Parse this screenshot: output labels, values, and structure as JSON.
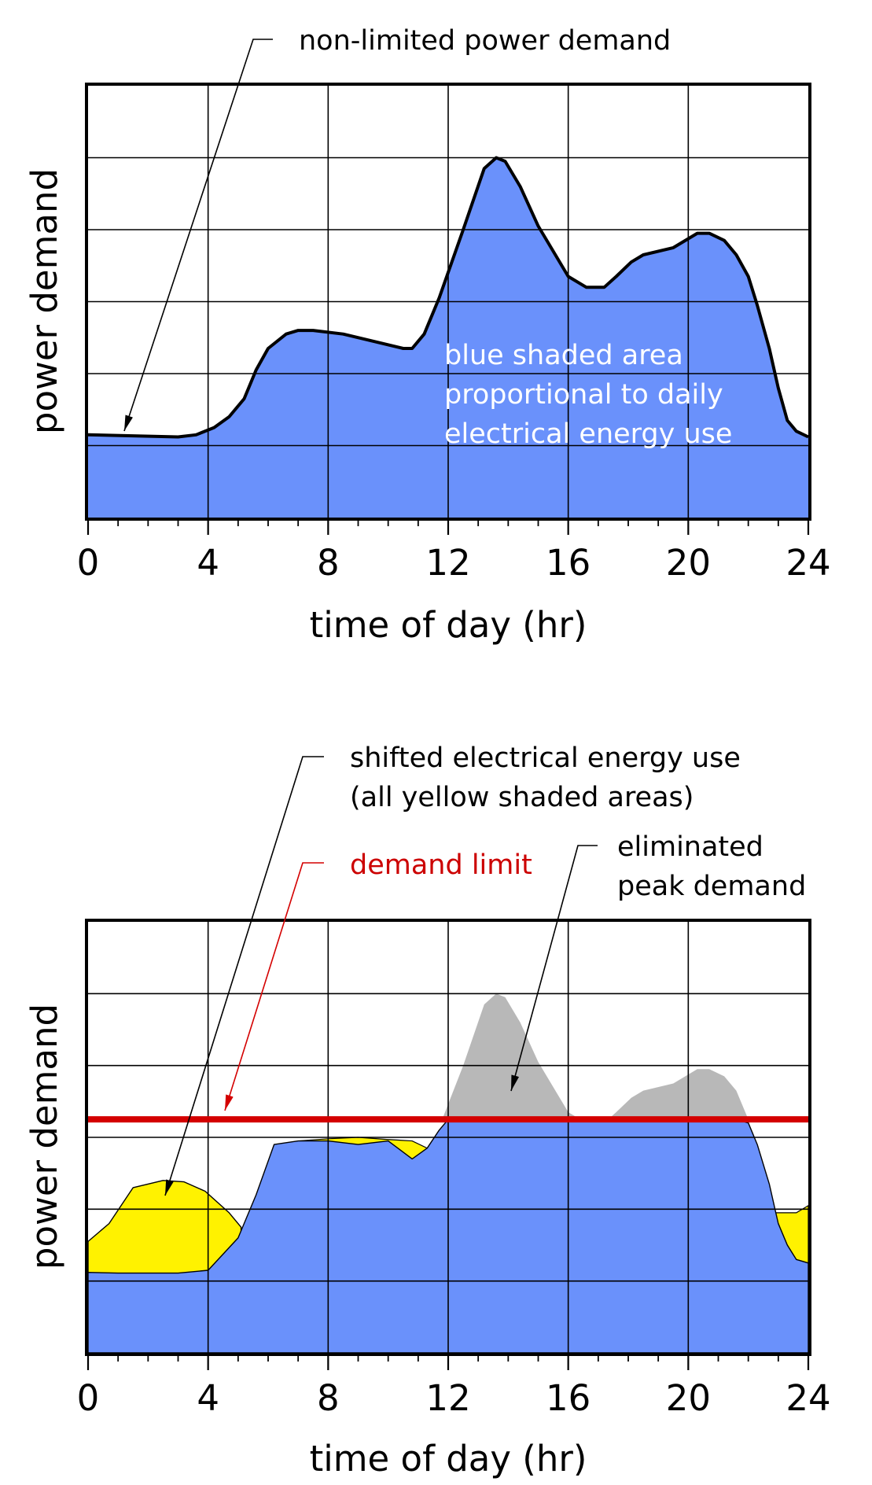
{
  "colors": {
    "blue_fill": "#6a91fb",
    "yellow_fill": "#fff200",
    "gray_fill": "#b8b8b8",
    "limit_line": "#d40000",
    "grid": "#000000"
  },
  "chart_data": [
    {
      "type": "area",
      "xlabel": "time of day (hr)",
      "ylabel": "power demand",
      "xlim": [
        0,
        24
      ],
      "ylim": [
        0,
        6
      ],
      "xticks": [
        0,
        4,
        8,
        12,
        16,
        20,
        24
      ],
      "xticks_minor_step": 1,
      "y_gridlines": [
        1,
        2,
        3,
        4,
        5
      ],
      "grid": true,
      "series": [
        {
          "x": [
            0,
            3,
            3.6,
            4.2,
            4.7,
            5.2,
            5.6,
            6.0,
            6.6,
            7.0,
            7.5,
            8.5,
            9.5,
            10.5,
            10.8,
            11.2,
            11.7,
            12.5,
            13.2,
            13.6,
            13.9,
            14.4,
            15.0,
            16.0,
            16.6,
            17.2,
            17.6,
            18.1,
            18.5,
            19.5,
            20.3,
            20.7,
            21.2,
            21.6,
            22.0,
            22.3,
            22.7,
            23.0,
            23.3,
            23.6,
            24
          ],
          "values": [
            1.15,
            1.12,
            1.15,
            1.25,
            1.4,
            1.65,
            2.05,
            2.35,
            2.55,
            2.6,
            2.6,
            2.55,
            2.45,
            2.35,
            2.35,
            2.55,
            3.05,
            4.0,
            4.85,
            5.0,
            4.95,
            4.6,
            4.05,
            3.35,
            3.2,
            3.2,
            3.35,
            3.55,
            3.65,
            3.75,
            3.95,
            3.95,
            3.85,
            3.65,
            3.35,
            2.95,
            2.35,
            1.8,
            1.35,
            1.2,
            1.12
          ]
        }
      ],
      "annotations": {
        "arrow_label": "non-limited power demand",
        "area_label_lines": [
          "blue shaded area",
          "proportional to daily",
          "electrical energy use"
        ]
      }
    },
    {
      "type": "area",
      "xlabel": "time of day (hr)",
      "ylabel": "power demand",
      "xlim": [
        0,
        24
      ],
      "ylim": [
        0,
        6
      ],
      "xticks": [
        0,
        4,
        8,
        12,
        16,
        20,
        24
      ],
      "xticks_minor_step": 1,
      "y_gridlines": [
        1,
        2,
        3,
        4,
        5
      ],
      "grid": true,
      "demand_limit": 3.25,
      "series": [
        {
          "x": [
            0,
            0.7,
            1.5,
            2.5,
            3.2,
            3.9,
            4.7,
            5.1
          ],
          "values": [
            1.55,
            1.8,
            2.3,
            2.4,
            2.38,
            2.25,
            1.95,
            1.75
          ]
        },
        {
          "x": [
            0,
            1,
            2,
            3,
            4,
            5,
            5.6,
            6.2,
            7.0,
            8.0,
            9.0,
            10.0,
            10.8,
            11.3,
            11.7,
            12.0,
            13.0,
            13.8,
            14.5,
            15.5,
            16.0,
            17.0,
            18.0,
            19.0,
            20.0,
            21.0,
            21.6,
            22.0,
            22.3,
            22.7,
            23.0,
            23.3,
            23.6,
            24
          ],
          "values": [
            1.12,
            1.11,
            1.11,
            1.11,
            1.15,
            1.6,
            2.2,
            2.9,
            2.95,
            2.95,
            2.9,
            2.95,
            2.7,
            2.85,
            3.1,
            3.25,
            3.25,
            3.25,
            3.25,
            3.25,
            3.25,
            3.25,
            3.25,
            3.25,
            3.25,
            3.25,
            3.25,
            3.2,
            2.9,
            2.35,
            1.8,
            1.5,
            1.3,
            1.25
          ]
        },
        {
          "x": [
            11.8,
            12.5,
            13.2,
            13.6,
            13.9,
            14.4,
            15.0,
            16.0,
            16.6,
            17.2,
            17.6,
            18.1,
            18.5,
            19.5,
            20.3,
            20.7,
            21.2,
            21.6,
            22.0
          ],
          "values": [
            3.25,
            4.0,
            4.85,
            5.0,
            4.95,
            4.6,
            4.05,
            3.35,
            3.2,
            3.2,
            3.35,
            3.55,
            3.65,
            3.75,
            3.95,
            3.95,
            3.85,
            3.65,
            3.25
          ]
        }
      ],
      "annotations": {
        "shift_label_lines": [
          "shifted electrical energy use",
          "(all yellow shaded areas)"
        ],
        "limit_label": "demand limit",
        "peak_label_lines": [
          "eliminated",
          "peak demand"
        ]
      }
    }
  ]
}
